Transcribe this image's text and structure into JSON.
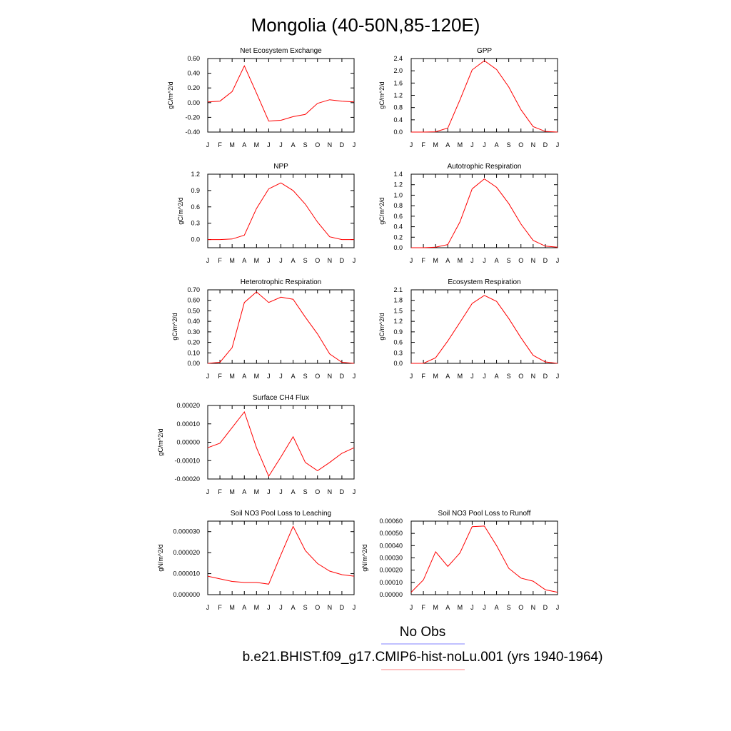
{
  "figure": {
    "title": "Mongolia (40-50N,85-120E)",
    "legend": [
      {
        "label": "No Obs",
        "color": "#8080ff"
      },
      {
        "label": "b.e21.BHIST.f09_g17.CMIP6-hist-noLu.001 (yrs 1940-1964)",
        "color": "#ff8080"
      }
    ],
    "line_color": "#ff0000"
  },
  "chart_data": [
    {
      "type": "line",
      "title": "Net Ecosystem Exchange",
      "ylabel": "gC/m^2/d",
      "xlabel": "",
      "categories": [
        "J",
        "F",
        "M",
        "A",
        "M",
        "J",
        "J",
        "A",
        "S",
        "O",
        "N",
        "D",
        "J"
      ],
      "ylim": [
        -0.4,
        0.6
      ],
      "yticks": [
        "0.60",
        "0.40",
        "0.20",
        "0.00",
        "-0.20",
        "-0.40"
      ],
      "ytick_values": [
        0.6,
        0.4,
        0.2,
        0.0,
        -0.2,
        -0.4
      ],
      "values": [
        0.01,
        0.02,
        0.15,
        0.5,
        0.13,
        -0.25,
        -0.24,
        -0.19,
        -0.16,
        -0.01,
        0.04,
        0.02,
        0.01
      ]
    },
    {
      "type": "line",
      "title": "GPP",
      "ylabel": "gC/m^2/d",
      "xlabel": "",
      "categories": [
        "J",
        "F",
        "M",
        "A",
        "M",
        "J",
        "J",
        "A",
        "S",
        "O",
        "N",
        "D",
        "J"
      ],
      "ylim": [
        0.0,
        2.4
      ],
      "yticks": [
        "2.4",
        "2.0",
        "1.6",
        "1.2",
        "0.8",
        "0.4",
        "0.0"
      ],
      "ytick_values": [
        2.4,
        2.0,
        1.6,
        1.2,
        0.8,
        0.4,
        0.0
      ],
      "values": [
        0.0,
        0.0,
        0.01,
        0.13,
        1.05,
        2.03,
        2.33,
        2.04,
        1.47,
        0.73,
        0.18,
        0.02,
        0.0
      ]
    },
    {
      "type": "line",
      "title": "NPP",
      "ylabel": "gC/m^2/d",
      "xlabel": "",
      "categories": [
        "J",
        "F",
        "M",
        "A",
        "M",
        "J",
        "J",
        "A",
        "S",
        "O",
        "N",
        "D",
        "J"
      ],
      "ylim": [
        -0.15,
        1.2
      ],
      "yticks": [
        "1.2",
        "0.9",
        "0.6",
        "0.3",
        "0.0"
      ],
      "ytick_values": [
        1.2,
        0.9,
        0.6,
        0.3,
        0.0
      ],
      "values": [
        0.0,
        0.0,
        0.01,
        0.08,
        0.57,
        0.93,
        1.04,
        0.9,
        0.65,
        0.32,
        0.05,
        0.0,
        0.0
      ]
    },
    {
      "type": "line",
      "title": "Autotrophic Respiration",
      "ylabel": "gC/m^2/d",
      "xlabel": "",
      "categories": [
        "J",
        "F",
        "M",
        "A",
        "M",
        "J",
        "J",
        "A",
        "S",
        "O",
        "N",
        "D",
        "J"
      ],
      "ylim": [
        0.0,
        1.4
      ],
      "yticks": [
        "1.4",
        "1.2",
        "1.0",
        "0.8",
        "0.6",
        "0.4",
        "0.2",
        "0.0"
      ],
      "ytick_values": [
        1.4,
        1.2,
        1.0,
        0.8,
        0.6,
        0.4,
        0.2,
        0.0
      ],
      "values": [
        0.0,
        0.0,
        0.01,
        0.06,
        0.49,
        1.12,
        1.31,
        1.15,
        0.84,
        0.45,
        0.14,
        0.03,
        0.01
      ]
    },
    {
      "type": "line",
      "title": "Heterotrophic Respiration",
      "ylabel": "gC/m^2/d",
      "xlabel": "",
      "categories": [
        "J",
        "F",
        "M",
        "A",
        "M",
        "J",
        "J",
        "A",
        "S",
        "O",
        "N",
        "D",
        "J"
      ],
      "ylim": [
        0.0,
        0.7
      ],
      "yticks": [
        "0.70",
        "0.60",
        "0.50",
        "0.40",
        "0.30",
        "0.20",
        "0.10",
        "0.00"
      ],
      "ytick_values": [
        0.7,
        0.6,
        0.5,
        0.4,
        0.3,
        0.2,
        0.1,
        0.0
      ],
      "values": [
        0.0,
        0.01,
        0.15,
        0.58,
        0.68,
        0.58,
        0.63,
        0.61,
        0.44,
        0.28,
        0.09,
        0.01,
        0.0
      ]
    },
    {
      "type": "line",
      "title": "Ecosystem Respiration",
      "ylabel": "gC/m^2/d",
      "xlabel": "",
      "categories": [
        "J",
        "F",
        "M",
        "A",
        "M",
        "J",
        "J",
        "A",
        "S",
        "O",
        "N",
        "D",
        "J"
      ],
      "ylim": [
        0.0,
        2.1
      ],
      "yticks": [
        "2.1",
        "1.8",
        "1.5",
        "1.2",
        "0.9",
        "0.6",
        "0.3",
        "0.0"
      ],
      "ytick_values": [
        2.1,
        1.8,
        1.5,
        1.2,
        0.9,
        0.6,
        0.3,
        0.0
      ],
      "values": [
        0.0,
        0.0,
        0.16,
        0.64,
        1.17,
        1.71,
        1.94,
        1.77,
        1.28,
        0.73,
        0.23,
        0.04,
        0.0
      ]
    },
    {
      "type": "line",
      "title": "Surface CH4 Flux",
      "ylabel": "gC/m^2/d",
      "xlabel": "",
      "categories": [
        "J",
        "F",
        "M",
        "A",
        "M",
        "J",
        "J",
        "A",
        "S",
        "O",
        "N",
        "D",
        "J"
      ],
      "ylim": [
        -0.0002,
        0.0002
      ],
      "yticks": [
        "0.00020",
        "0.00010",
        "0.00000",
        "-0.00010",
        "-0.00020"
      ],
      "ytick_values": [
        0.0002,
        0.0001,
        0.0,
        -0.0001,
        -0.0002
      ],
      "values": [
        -3e-05,
        -5e-06,
        8e-05,
        0.000165,
        -3e-05,
        -0.000185,
        -8e-05,
        3e-05,
        -0.00011,
        -0.000155,
        -0.00011,
        -6e-05,
        -3e-05
      ]
    },
    {
      "type": "line",
      "title": "Soil NO3 Pool Loss to Leaching",
      "ylabel": "gN/m^2/d",
      "xlabel": "",
      "categories": [
        "J",
        "F",
        "M",
        "A",
        "M",
        "J",
        "J",
        "A",
        "S",
        "O",
        "N",
        "D",
        "J"
      ],
      "ylim": [
        0.0,
        3.5e-05
      ],
      "yticks": [
        "0.000030",
        "0.000020",
        "0.000010",
        "0.000000"
      ],
      "ytick_values": [
        3e-05,
        2e-05,
        1e-05,
        0.0
      ],
      "values": [
        8.8e-06,
        7.5e-06,
        6.3e-06,
        5.8e-06,
        5.8e-06,
        5e-06,
        1.9e-05,
        3.25e-05,
        2.1e-05,
        1.48e-05,
        1.12e-05,
        9.5e-06,
        8.8e-06
      ]
    },
    {
      "type": "line",
      "title": "Soil NO3 Pool Loss to Runoff",
      "ylabel": "gN/m^2/d",
      "xlabel": "",
      "categories": [
        "J",
        "F",
        "M",
        "A",
        "M",
        "J",
        "J",
        "A",
        "S",
        "O",
        "N",
        "D",
        "J"
      ],
      "ylim": [
        0.0,
        0.0006
      ],
      "yticks": [
        "0.00060",
        "0.00050",
        "0.00040",
        "0.00030",
        "0.00020",
        "0.00010",
        "0.00000"
      ],
      "ytick_values": [
        0.0006,
        0.0005,
        0.0004,
        0.0003,
        0.0002,
        0.0001,
        0.0
      ],
      "values": [
        2e-05,
        0.00012,
        0.00035,
        0.00023,
        0.00034,
        0.000555,
        0.00056,
        0.0004,
        0.000215,
        0.000135,
        0.00011,
        4e-05,
        2e-05
      ]
    }
  ]
}
